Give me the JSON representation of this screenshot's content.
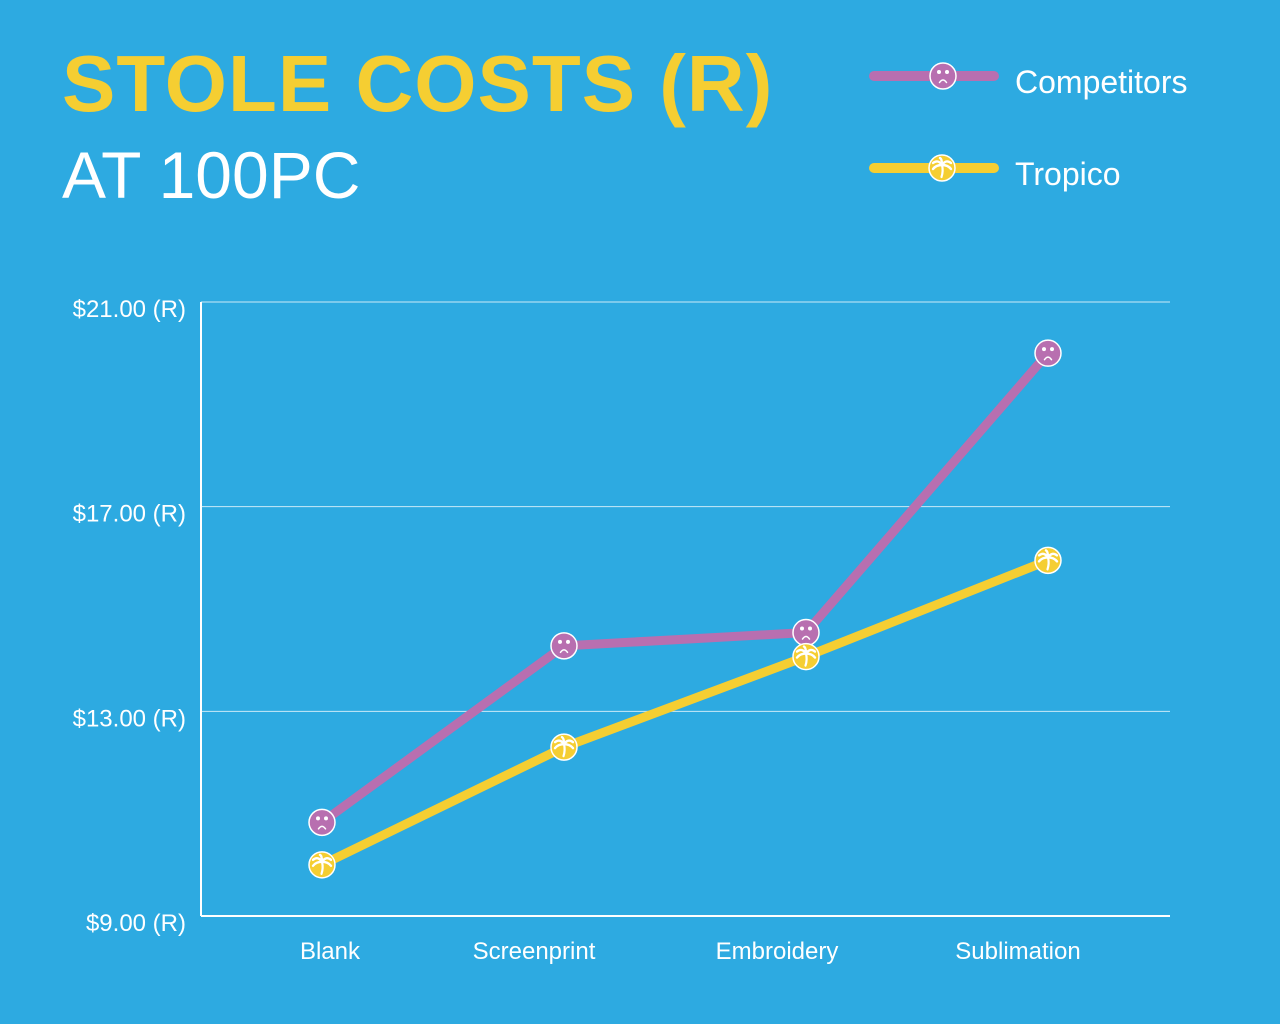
{
  "chart_data": {
    "type": "line",
    "title": "STOLE COSTS (R)",
    "subtitle": "AT 100PC",
    "categories": [
      "Blank",
      "Screenprint",
      "Embroidery",
      "Sublimation"
    ],
    "series": [
      {
        "name": "Competitors",
        "values": [
          10.83,
          14.28,
          14.54,
          20.0
        ],
        "color": "#b86fb0",
        "marker_icon": "sad-face-icon"
      },
      {
        "name": "Tropico",
        "values": [
          10.0,
          12.3,
          14.07,
          15.95
        ],
        "color": "#f5ce32",
        "marker_icon": "palm-tree-icon"
      }
    ],
    "y_ticks": [
      "$21.00 (R)",
      "$17.00 (R)",
      "$13.00 (R)",
      "$9.00 (R)"
    ],
    "y_tick_values": [
      21,
      17,
      13,
      9
    ],
    "ylim": [
      9,
      21
    ],
    "xlabel": "",
    "ylabel": "",
    "grid": true,
    "legend_position": "top-right"
  },
  "colors": {
    "background": "#2daae1",
    "title": "#f5ce32",
    "text": "#ffffff",
    "axis": "#ffffff"
  }
}
